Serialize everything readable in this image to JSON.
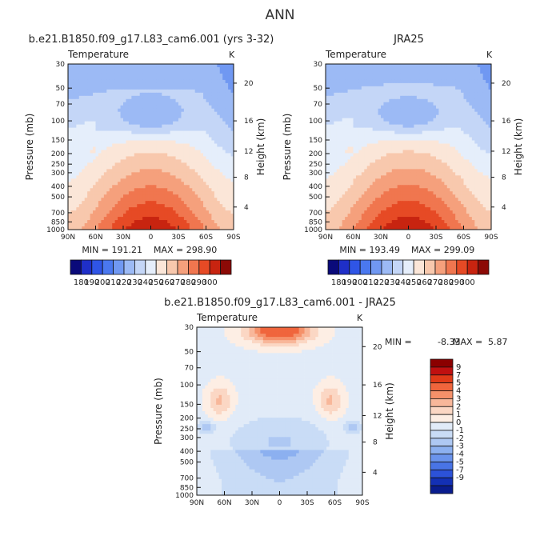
{
  "page": {
    "title": "ANN"
  },
  "colors": {
    "abs_palette": [
      "#0a0a7a",
      "#1f2fc8",
      "#2f55e6",
      "#4a78ef",
      "#7098f2",
      "#9cbaf5",
      "#c4d6f7",
      "#e5eefb",
      "#fbe6d8",
      "#f8c8ad",
      "#f5a07c",
      "#f0764f",
      "#e64a25",
      "#c82410",
      "#8c0a06"
    ],
    "diff_palette": [
      "#8b0000",
      "#c01010",
      "#e03a18",
      "#f0653c",
      "#f5916a",
      "#f8b79a",
      "#fbd7c4",
      "#fdeee4",
      "#e1ebf8",
      "#c9dcf6",
      "#aec8f3",
      "#8cb0f0",
      "#6a93ec",
      "#4974e6",
      "#2c52d8",
      "#1330b5",
      "#091c8e"
    ]
  },
  "chart_data": [
    {
      "type": "heatmap",
      "id": "model",
      "title": "b.e21.B1850.f09_g17.L83_cam6.001 (yrs 3-32)",
      "field_label": "Temperature",
      "unit_label": "K",
      "xlabel": "",
      "ylabel": "Pressure (mb)",
      "y2label": "Height (km)",
      "x_ticks": [
        "90N",
        "60N",
        "30N",
        "0",
        "30S",
        "60S",
        "90S"
      ],
      "y_ticks": [
        "30",
        "50",
        "70",
        "100",
        "150",
        "200",
        "250",
        "300",
        "400",
        "500",
        "700",
        "850",
        "1000"
      ],
      "y2_ticks": [
        "20",
        "16",
        "12",
        "8",
        "4"
      ],
      "min_label": "MIN = 191.21",
      "max_label": "MAX = 298.90",
      "min": 191.21,
      "max": 298.9,
      "colorbar_labels": [
        "180",
        "190",
        "200",
        "210",
        "220",
        "230",
        "240",
        "250",
        "260",
        "270",
        "280",
        "290",
        "300"
      ]
    },
    {
      "type": "heatmap",
      "id": "obs",
      "title": "JRA25",
      "field_label": "Temperature",
      "unit_label": "K",
      "xlabel": "",
      "ylabel": "Pressure (mb)",
      "y2label": "Height (km)",
      "x_ticks": [
        "90N",
        "60N",
        "30N",
        "0",
        "30S",
        "60S",
        "90S"
      ],
      "y_ticks": [
        "30",
        "50",
        "70",
        "100",
        "150",
        "200",
        "250",
        "300",
        "400",
        "500",
        "700",
        "850",
        "1000"
      ],
      "y2_ticks": [
        "20",
        "16",
        "12",
        "8",
        "4"
      ],
      "min_label": "MIN = 193.49",
      "max_label": "MAX = 299.09",
      "min": 193.49,
      "max": 299.09,
      "colorbar_labels": [
        "180",
        "190",
        "200",
        "210",
        "220",
        "230",
        "240",
        "250",
        "260",
        "270",
        "280",
        "290",
        "300"
      ]
    },
    {
      "type": "heatmap",
      "id": "diff",
      "title": "b.e21.B1850.f09_g17.L83_cam6.001 - JRA25",
      "field_label": "Temperature",
      "unit_label": "K",
      "xlabel": "",
      "ylabel": "Pressure (mb)",
      "y2label": "Height (km)",
      "x_ticks": [
        "90N",
        "60N",
        "30N",
        "0",
        "30S",
        "60S",
        "90S"
      ],
      "y_ticks": [
        "30",
        "50",
        "70",
        "100",
        "150",
        "200",
        "250",
        "300",
        "400",
        "500",
        "700",
        "850",
        "1000"
      ],
      "y2_ticks": [
        "20",
        "16",
        "12",
        "8",
        "4"
      ],
      "min_label": "MIN =",
      "min_value": "-8.33",
      "max_label": "MAX =",
      "max_value": "5.87",
      "min": -8.33,
      "max": 5.87,
      "colorbar_labels": [
        "9",
        "7",
        "5",
        "4",
        "3",
        "2",
        "1",
        "0",
        "-1",
        "-2",
        "-3",
        "-4",
        "-5",
        "-7",
        "-9"
      ]
    }
  ]
}
